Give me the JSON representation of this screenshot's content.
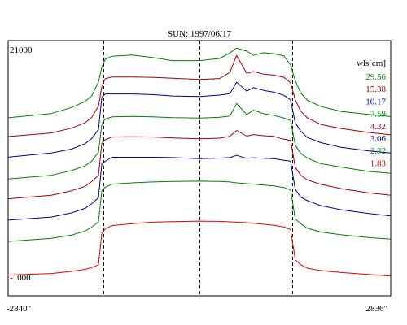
{
  "chart_data": {
    "type": "line",
    "title": "SUN: 1997/06/17",
    "ylim": [
      -1000,
      21000
    ],
    "y_tick_labels": [
      "21000",
      "-1000"
    ],
    "xlim": [
      -2840,
      2836
    ],
    "x_tick_labels": [
      "-2840\"",
      "2836\""
    ],
    "vertical_markers": [
      -1425,
      0,
      1380
    ],
    "legend": {
      "title": "wls[cm]",
      "placement": "top-right",
      "entries": [
        {
          "label": "29.56",
          "color": "#008000"
        },
        {
          "label": "15.38",
          "color": "#a00000"
        },
        {
          "label": "10.17",
          "color": "#000090"
        },
        {
          "label": "7.59",
          "color": "#008000"
        },
        {
          "label": "4.32",
          "color": "#a00000"
        },
        {
          "label": "3.06",
          "color": "#000090"
        },
        {
          "label": "2.32",
          "color": "#008000"
        },
        {
          "label": "1.83",
          "color": "#e00000"
        }
      ]
    },
    "x": [
      -2840,
      -2200,
      -1900,
      -1700,
      -1600,
      -1500,
      -1450,
      -1400,
      -1300,
      -1000,
      -700,
      -400,
      0,
      300,
      450,
      550,
      700,
      800,
      950,
      1100,
      1250,
      1350,
      1420,
      1500,
      1600,
      1800,
      2100,
      2500,
      2836
    ],
    "series": [
      {
        "name": "29.56",
        "color": "#008000",
        "values": [
          14460,
          14870,
          15460,
          16040,
          16590,
          17940,
          19380,
          20130,
          20430,
          20540,
          20310,
          20010,
          20010,
          20210,
          20750,
          21210,
          20920,
          20510,
          20770,
          20680,
          20470,
          19590,
          18070,
          16860,
          16150,
          15560,
          15080,
          14790,
          14580
        ]
      },
      {
        "name": "15.38",
        "color": "#a00000",
        "values": [
          12640,
          12990,
          13450,
          13970,
          14510,
          15580,
          17500,
          18250,
          18420,
          18420,
          18390,
          18300,
          18180,
          18270,
          18860,
          20510,
          18770,
          18950,
          18690,
          18600,
          18390,
          17870,
          16210,
          15100,
          14450,
          13810,
          13420,
          13040,
          12810
        ]
      },
      {
        "name": "10.17",
        "color": "#000090",
        "values": [
          10640,
          11040,
          11420,
          11950,
          12450,
          13320,
          16460,
          16770,
          16770,
          16770,
          16710,
          16580,
          16520,
          16660,
          16800,
          17920,
          17050,
          17380,
          17120,
          16950,
          16650,
          16190,
          13960,
          13170,
          12540,
          12050,
          11590,
          11250,
          11040
        ]
      },
      {
        "name": "7.59",
        "color": "#008000",
        "values": [
          8520,
          8880,
          9340,
          9790,
          10260,
          11120,
          13850,
          14330,
          14560,
          14600,
          14560,
          14480,
          14430,
          14510,
          14640,
          15850,
          14770,
          15200,
          14850,
          14690,
          14450,
          14200,
          11800,
          11010,
          10550,
          10010,
          9680,
          9260,
          9080
        ]
      },
      {
        "name": "4.32",
        "color": "#a00000",
        "values": [
          6600,
          6950,
          7380,
          7800,
          8270,
          8870,
          11990,
          12330,
          12600,
          12620,
          12600,
          12510,
          12430,
          12480,
          12660,
          13230,
          12680,
          12830,
          12720,
          12660,
          12380,
          12270,
          9670,
          8880,
          8430,
          8000,
          7590,
          7180,
          6940
        ]
      },
      {
        "name": "3.06",
        "color": "#000090",
        "values": [
          4530,
          4830,
          5230,
          5670,
          6130,
          6720,
          10000,
          10240,
          10630,
          10630,
          10630,
          10600,
          10500,
          10550,
          10600,
          10810,
          10530,
          10580,
          10530,
          10500,
          10330,
          10250,
          7510,
          6770,
          6420,
          5930,
          5540,
          5180,
          4940
        ]
      },
      {
        "name": "2.32",
        "color": "#008000",
        "values": [
          2460,
          2770,
          3080,
          3460,
          3850,
          4360,
          7390,
          7720,
          8020,
          8150,
          8230,
          8280,
          8310,
          8280,
          8230,
          8150,
          8070,
          8020,
          7930,
          7850,
          7690,
          7460,
          4660,
          4180,
          3740,
          3380,
          3110,
          2840,
          2690
        ]
      },
      {
        "name": "1.83",
        "color": "#e00000",
        "values": [
          -800,
          -650,
          -450,
          -250,
          -80,
          200,
          3260,
          3670,
          4000,
          4180,
          4330,
          4380,
          4430,
          4410,
          4360,
          4330,
          4280,
          4230,
          4130,
          4020,
          3870,
          3620,
          680,
          200,
          -150,
          -370,
          -560,
          -750,
          -900
        ]
      }
    ]
  }
}
